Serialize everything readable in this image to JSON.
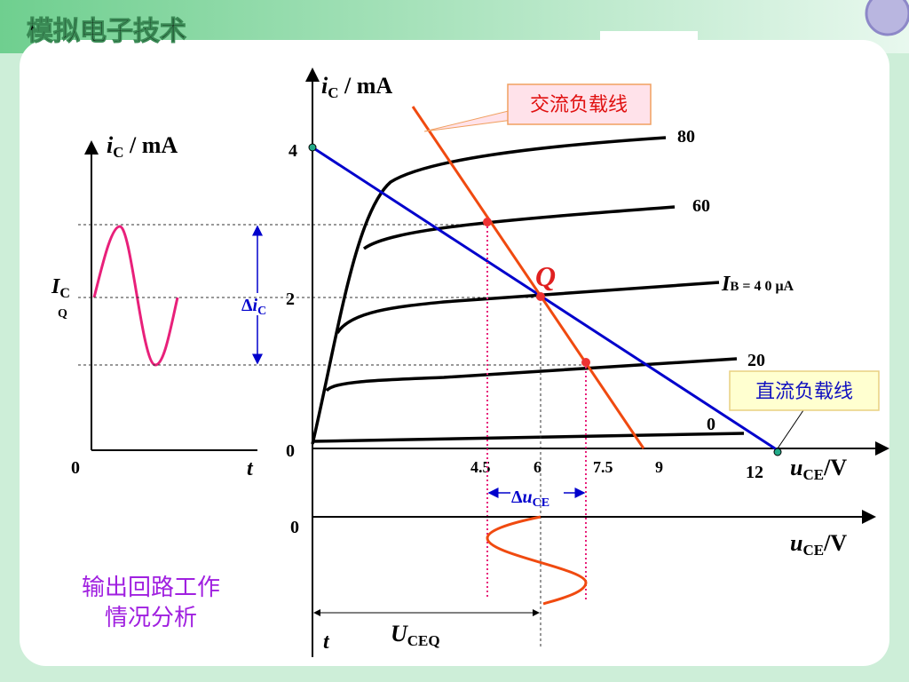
{
  "header": {
    "title": "模拟电子技术"
  },
  "left_graph": {
    "y_axis": {
      "main": "i",
      "sub": "C",
      "unit": " / mA"
    },
    "icq": {
      "main": "I",
      "sub": "C",
      "sub2": "Q"
    },
    "origin": "0",
    "t": "t",
    "delta_ic": {
      "delta": "Δ",
      "main": "i",
      "sub": "C"
    }
  },
  "main_graph": {
    "y_axis": {
      "main": "i",
      "sub": "C",
      "unit": " / mA"
    },
    "y_ticks": [
      "4",
      "2",
      "0"
    ],
    "x_ticks": [
      "4.5",
      "6",
      "7.5",
      "9",
      "12"
    ],
    "x_axis": {
      "main": "u",
      "sub": "CE",
      "unit": "/V"
    },
    "curve_labels": [
      "80",
      "60",
      {
        "main": "I",
        "sub": "B",
        "rest": " = 4 0 μA"
      },
      "20",
      "0"
    ],
    "q_label": "Q",
    "ac_load_line": "交流负载线",
    "dc_load_line": "直流负载线",
    "delta_uce": {
      "delta": "Δ",
      "main": "u",
      "sub": "CE"
    }
  },
  "bottom_graph": {
    "origin": "0",
    "x_axis": {
      "main": "u",
      "sub": "CE",
      "unit": "/V"
    },
    "t": "t",
    "uceq": {
      "main": "U",
      "sub": "CEQ"
    }
  },
  "caption": [
    "输出回路工作",
    "情况分析"
  ]
}
